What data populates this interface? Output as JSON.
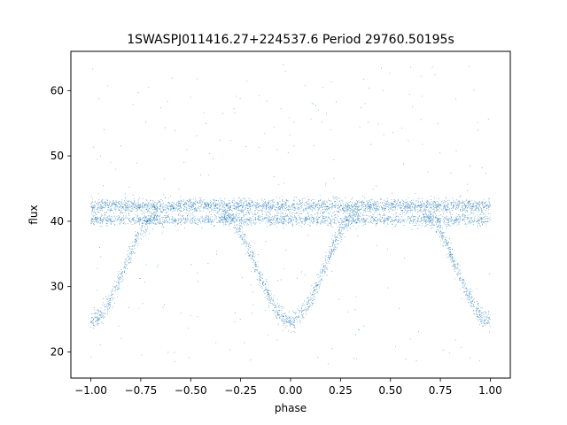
{
  "chart_data": {
    "type": "scatter",
    "title": "1SWASPJ011416.27+224537.6 Period 29760.50195s",
    "xlabel": "phase",
    "ylabel": "flux",
    "xlim": [
      -1.1,
      1.1
    ],
    "ylim": [
      16,
      66
    ],
    "xticks": [
      -1.0,
      -0.75,
      -0.5,
      -0.25,
      0.0,
      0.25,
      0.5,
      0.75,
      1.0
    ],
    "xtick_labels": [
      "−1.00",
      "−0.75",
      "−0.50",
      "−0.25",
      "0.00",
      "0.25",
      "0.50",
      "0.75",
      "1.00"
    ],
    "yticks": [
      20,
      30,
      40,
      50,
      60
    ],
    "ytick_labels": [
      "20",
      "30",
      "40",
      "50",
      "60"
    ],
    "grid": false,
    "legend": "none",
    "series": [
      {
        "color": "#1f77b4",
        "marker_size_px": 0.9,
        "components": [
          {
            "kind": "upper_band",
            "x_range": [
              -1.0,
              1.0
            ],
            "flux_center": 42.3,
            "flux_spread": 1.0
          },
          {
            "kind": "lower_band",
            "x_range": [
              -1.0,
              1.0
            ],
            "flux_center": 40.2,
            "flux_spread": 0.8
          },
          {
            "kind": "eclipse",
            "center_phase": 0.0,
            "min_flux": 24.8,
            "out_of_eclipse_flux": 41.0,
            "half_width_phase": 0.34
          },
          {
            "kind": "eclipse",
            "center_phase": -1.0,
            "min_flux": 24.8,
            "out_of_eclipse_flux": 41.0,
            "half_width_phase": 0.34
          },
          {
            "kind": "eclipse",
            "center_phase": 1.0,
            "min_flux": 24.8,
            "out_of_eclipse_flux": 41.0,
            "half_width_phase": 0.34
          },
          {
            "kind": "scatter_outliers",
            "x_range": [
              -1.0,
              1.0
            ],
            "flux_range": [
              18,
              64
            ]
          }
        ]
      }
    ]
  }
}
